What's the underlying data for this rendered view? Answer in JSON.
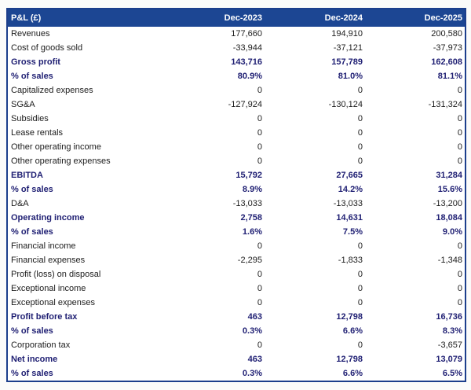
{
  "chart_data": {
    "type": "table",
    "title": "P&L (£)",
    "columns": [
      "Dec-2023",
      "Dec-2024",
      "Dec-2025"
    ],
    "rows": [
      {
        "label": "Revenues",
        "values": [
          "177,660",
          "194,910",
          "200,580"
        ],
        "style": "normal"
      },
      {
        "label": "Cost of goods sold",
        "values": [
          "-33,944",
          "-37,121",
          "-37,973"
        ],
        "style": "normal"
      },
      {
        "label": "Gross profit",
        "values": [
          "143,716",
          "157,789",
          "162,608"
        ],
        "style": "subtotal"
      },
      {
        "label": "% of sales",
        "values": [
          "80.9%",
          "81.0%",
          "81.1%"
        ],
        "style": "subtotal"
      },
      {
        "label": "Capitalized expenses",
        "values": [
          "0",
          "0",
          "0"
        ],
        "style": "normal"
      },
      {
        "label": "SG&A",
        "values": [
          "-127,924",
          "-130,124",
          "-131,324"
        ],
        "style": "normal"
      },
      {
        "label": "Subsidies",
        "values": [
          "0",
          "0",
          "0"
        ],
        "style": "normal"
      },
      {
        "label": "Lease rentals",
        "values": [
          "0",
          "0",
          "0"
        ],
        "style": "normal"
      },
      {
        "label": "Other operating income",
        "values": [
          "0",
          "0",
          "0"
        ],
        "style": "normal"
      },
      {
        "label": "Other operating expenses",
        "values": [
          "0",
          "0",
          "0"
        ],
        "style": "normal"
      },
      {
        "label": "EBITDA",
        "values": [
          "15,792",
          "27,665",
          "31,284"
        ],
        "style": "subtotal"
      },
      {
        "label": "% of sales",
        "values": [
          "8.9%",
          "14.2%",
          "15.6%"
        ],
        "style": "subtotal"
      },
      {
        "label": "D&A",
        "values": [
          "-13,033",
          "-13,033",
          "-13,200"
        ],
        "style": "normal"
      },
      {
        "label": "Operating income",
        "values": [
          "2,758",
          "14,631",
          "18,084"
        ],
        "style": "subtotal"
      },
      {
        "label": "% of sales",
        "values": [
          "1.6%",
          "7.5%",
          "9.0%"
        ],
        "style": "subtotal"
      },
      {
        "label": "Financial income",
        "values": [
          "0",
          "0",
          "0"
        ],
        "style": "normal"
      },
      {
        "label": "Financial expenses",
        "values": [
          "-2,295",
          "-1,833",
          "-1,348"
        ],
        "style": "normal"
      },
      {
        "label": "Profit (loss) on disposal",
        "values": [
          "0",
          "0",
          "0"
        ],
        "style": "normal"
      },
      {
        "label": "Exceptional income",
        "values": [
          "0",
          "0",
          "0"
        ],
        "style": "normal"
      },
      {
        "label": "Exceptional expenses",
        "values": [
          "0",
          "0",
          "0"
        ],
        "style": "normal"
      },
      {
        "label": "Profit before tax",
        "values": [
          "463",
          "12,798",
          "16,736"
        ],
        "style": "subtotal"
      },
      {
        "label": "% of sales",
        "values": [
          "0.3%",
          "6.6%",
          "8.3%"
        ],
        "style": "subtotal"
      },
      {
        "label": "Corporation tax",
        "values": [
          "0",
          "0",
          "-3,657"
        ],
        "style": "normal"
      },
      {
        "label": "Net income",
        "values": [
          "463",
          "12,798",
          "13,079"
        ],
        "style": "subtotal"
      },
      {
        "label": "% of sales",
        "values": [
          "0.3%",
          "6.6%",
          "6.5%"
        ],
        "style": "subtotal"
      }
    ],
    "layout": {
      "value_alignment": "right",
      "gridlines": "none"
    },
    "colors": {
      "header_bg": "#1c4693",
      "header_text": "#ffffff",
      "border": "#1c3e8c",
      "emphasis_text": "#1f1f73",
      "body_text": "#1c1c1c",
      "row_bg": "#ffffff",
      "page_bg": "#fbfbfa"
    }
  }
}
